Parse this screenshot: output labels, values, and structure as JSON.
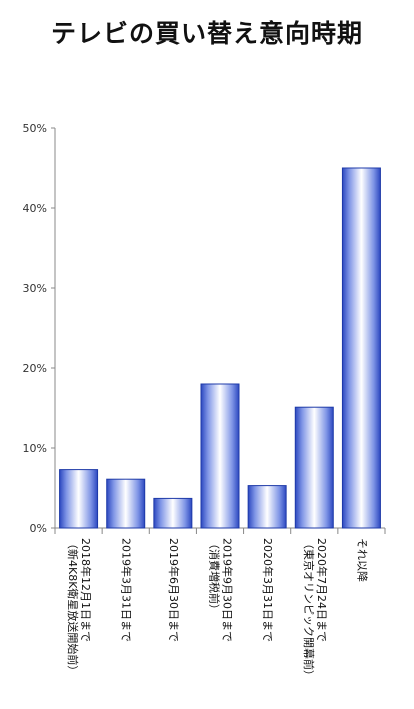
{
  "chart_data": {
    "type": "bar",
    "title": "テレビの買い替え意向時期",
    "categories": [
      [
        "2018年12月1日まで",
        "（新4K8K衛星放送開始前）"
      ],
      [
        "2019年3月31日まで"
      ],
      [
        "2019年6月30日まで"
      ],
      [
        "2019年9月30日まで",
        "（消費増税前）"
      ],
      [
        "2020年3月31日まで"
      ],
      [
        "2020年7月24日まで",
        "（東京オリンピック開幕前）"
      ],
      [
        "それ以降"
      ]
    ],
    "values": [
      7.3,
      6.1,
      3.7,
      18.0,
      5.3,
      15.1,
      45.0
    ],
    "y_ticks": [
      "0%",
      "10%",
      "20%",
      "30%",
      "40%",
      "50%"
    ],
    "ylim": [
      0,
      50
    ],
    "grid": false,
    "colors": {
      "bar_edge": "#3050c8",
      "bar_center": "#ffffff",
      "bar_dark": "#5a78dc",
      "axis": "#888888"
    }
  }
}
